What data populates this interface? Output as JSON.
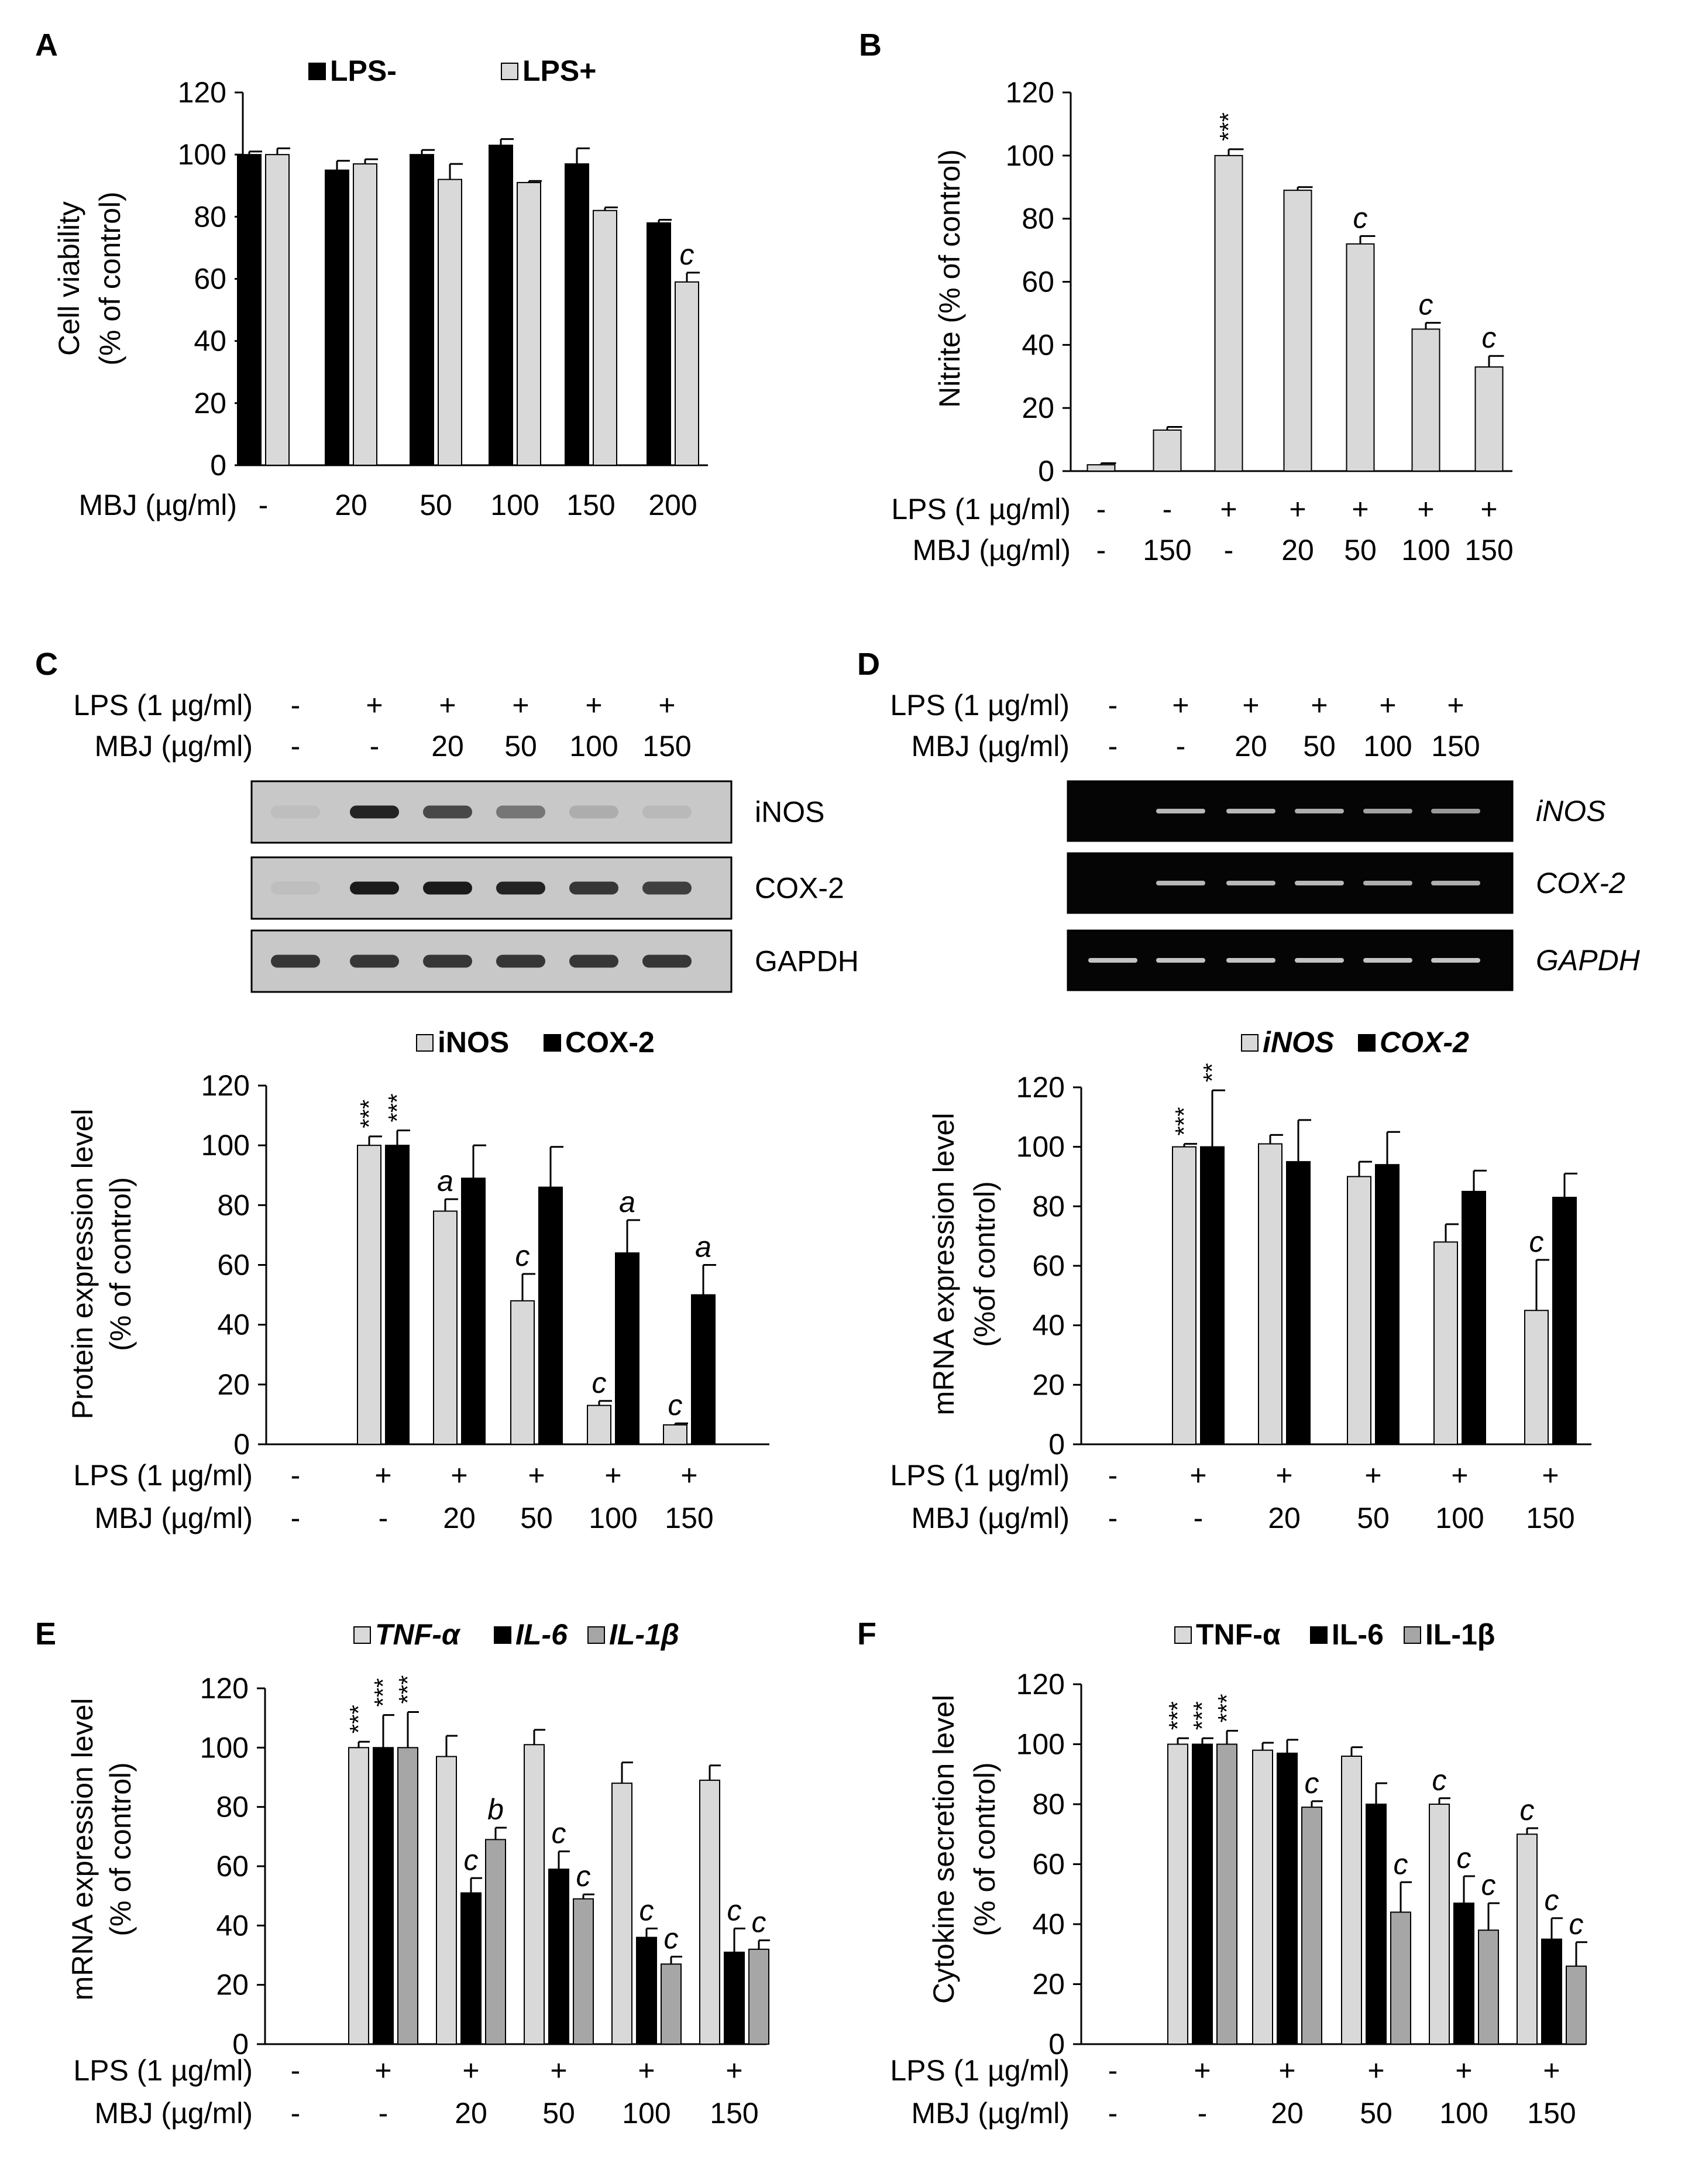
{
  "colors": {
    "light": "#d9d9d9",
    "black": "#000000",
    "mid": "#a6a6a6",
    "gel_bg": "#050505",
    "gel_band": "#d8d8d8",
    "blot_bg": "#c8c8c8"
  },
  "chart_data": [
    {
      "id": "A",
      "letter": "A",
      "type": "bar",
      "ylabel": [
        "Cell viability",
        "(% of control)"
      ],
      "ylim": [
        0,
        120
      ],
      "yticks": [
        0,
        20,
        40,
        60,
        80,
        100,
        120
      ],
      "legend": [
        {
          "label": "LPS-",
          "color": "#000000",
          "italic": false
        },
        {
          "label": "LPS+",
          "color": "#d9d9d9",
          "italic": false
        }
      ],
      "row_labels": [
        "MBJ (µg/ml)"
      ],
      "categories": [
        [
          "-"
        ],
        [
          "20"
        ],
        [
          "50"
        ],
        [
          "100"
        ],
        [
          "150"
        ],
        [
          "200"
        ]
      ],
      "series": [
        {
          "name": "LPS-",
          "color": "#000000",
          "values": [
            100,
            95,
            100,
            103,
            97,
            78
          ],
          "errors": [
            1,
            3,
            1.5,
            2,
            5,
            1
          ],
          "stars": [
            "",
            "",
            "",
            "",
            "",
            ""
          ]
        },
        {
          "name": "LPS+",
          "color": "#d9d9d9",
          "values": [
            100,
            97,
            92,
            91,
            82,
            59
          ],
          "errors": [
            2,
            1.5,
            5,
            0.5,
            1,
            3
          ],
          "stars": [
            "",
            "",
            "",
            "",
            "",
            "c"
          ]
        }
      ]
    },
    {
      "id": "B",
      "letter": "B",
      "type": "bar",
      "ylabel": [
        "Nitrite (% of control)"
      ],
      "ylim": [
        0,
        120
      ],
      "yticks": [
        0,
        20,
        40,
        60,
        80,
        100,
        120
      ],
      "legend": [],
      "row_labels": [
        "LPS (1 µg/ml)",
        "MBJ  (µg/ml)"
      ],
      "categories": [
        [
          "-",
          "-"
        ],
        [
          "-",
          "150"
        ],
        [
          "+",
          "-"
        ],
        [
          "+",
          "20"
        ],
        [
          "+",
          "50"
        ],
        [
          "+",
          "100"
        ],
        [
          "+",
          "150"
        ]
      ],
      "series": [
        {
          "name": "Nitrite",
          "color": "#d9d9d9",
          "values": [
            2,
            13,
            100,
            89,
            72,
            45,
            33
          ],
          "errors": [
            0.5,
            1,
            2,
            1,
            2.5,
            2,
            3.5
          ],
          "stars": [
            "",
            "",
            "***",
            "",
            "c",
            "c",
            "c"
          ]
        }
      ]
    },
    {
      "id": "C",
      "letter": "C",
      "type": "bar",
      "ylabel": [
        "Protein expression level",
        "(% of control)"
      ],
      "ylim": [
        0,
        120
      ],
      "yticks": [
        0,
        20,
        40,
        60,
        80,
        100,
        120
      ],
      "legend": [
        {
          "label": "iNOS",
          "color": "#d9d9d9",
          "italic": false
        },
        {
          "label": "COX-2",
          "color": "#000000",
          "italic": false
        }
      ],
      "row_labels": [
        "LPS (1 µg/ml)",
        "MBJ (µg/ml)"
      ],
      "categories": [
        [
          "-",
          "-"
        ],
        [
          "+",
          "-"
        ],
        [
          "+",
          "20"
        ],
        [
          "+",
          "50"
        ],
        [
          "+",
          "100"
        ],
        [
          "+",
          "150"
        ]
      ],
      "series": [
        {
          "name": "iNOS",
          "color": "#d9d9d9",
          "values": [
            0,
            100,
            78,
            48,
            13,
            6.5
          ],
          "errors": [
            0,
            3,
            4,
            9,
            1.5,
            0.5
          ],
          "stars": [
            "",
            "***",
            "a",
            "c",
            "c",
            "c"
          ]
        },
        {
          "name": "COX-2",
          "color": "#000000",
          "values": [
            0,
            100,
            89,
            86,
            64,
            50
          ],
          "errors": [
            0,
            5,
            11,
            13.5,
            11,
            10
          ],
          "stars": [
            "",
            "***",
            "",
            "",
            "a",
            "a"
          ]
        }
      ]
    },
    {
      "id": "D",
      "letter": "D",
      "type": "bar",
      "ylabel": [
        "mRNA expression level",
        "(%of control)"
      ],
      "ylim": [
        0,
        120
      ],
      "yticks": [
        0,
        20,
        40,
        60,
        80,
        100,
        120
      ],
      "legend": [
        {
          "label": "iNOS",
          "color": "#d9d9d9",
          "italic": true
        },
        {
          "label": "COX-2",
          "color": "#000000",
          "italic": true
        }
      ],
      "row_labels": [
        "LPS (1 µg/ml)",
        "MBJ (µg/ml)"
      ],
      "categories": [
        [
          "-",
          "-"
        ],
        [
          "+",
          "-"
        ],
        [
          "+",
          "20"
        ],
        [
          "+",
          "50"
        ],
        [
          "+",
          "100"
        ],
        [
          "+",
          "150"
        ]
      ],
      "series": [
        {
          "name": "iNOS",
          "color": "#d9d9d9",
          "values": [
            0,
            100,
            101,
            90,
            68,
            45
          ],
          "errors": [
            0,
            1,
            3,
            5,
            6,
            17
          ],
          "stars": [
            "",
            "***",
            "",
            "",
            "",
            "c"
          ]
        },
        {
          "name": "COX-2",
          "color": "#000000",
          "values": [
            0,
            100,
            95,
            94,
            85,
            83
          ],
          "errors": [
            0,
            19,
            14,
            11,
            7,
            8
          ],
          "stars": [
            "",
            "**",
            "",
            "",
            "",
            ""
          ]
        }
      ]
    },
    {
      "id": "E",
      "letter": "E",
      "type": "bar",
      "ylabel": [
        "mRNA expression level",
        "(% of control)"
      ],
      "ylim": [
        0,
        120
      ],
      "yticks": [
        0,
        20,
        40,
        60,
        80,
        100,
        120
      ],
      "legend": [
        {
          "label": "TNF-α",
          "color": "#d9d9d9",
          "italic": true
        },
        {
          "label": "IL-6",
          "color": "#000000",
          "italic": true
        },
        {
          "label": "IL-1β",
          "color": "#a6a6a6",
          "italic": true
        }
      ],
      "row_labels": [
        "LPS (1 µg/ml)",
        "MBJ (µg/ml)"
      ],
      "categories": [
        [
          "-",
          "-"
        ],
        [
          "+",
          "-"
        ],
        [
          "+",
          "20"
        ],
        [
          "+",
          "50"
        ],
        [
          "+",
          "100"
        ],
        [
          "+",
          "150"
        ]
      ],
      "series": [
        {
          "name": "TNF-α",
          "color": "#d9d9d9",
          "values": [
            0,
            100,
            97,
            101,
            88,
            89
          ],
          "errors": [
            0,
            2,
            7,
            5,
            7,
            5
          ],
          "stars": [
            "",
            "***",
            "",
            "",
            "",
            ""
          ]
        },
        {
          "name": "IL-6",
          "color": "#000000",
          "values": [
            0,
            100,
            51,
            59,
            36,
            31
          ],
          "errors": [
            0,
            11,
            5,
            6,
            3,
            8
          ],
          "stars": [
            "",
            "***",
            "c",
            "c",
            "c",
            "c"
          ]
        },
        {
          "name": "IL-1β",
          "color": "#a6a6a6",
          "values": [
            0,
            100,
            69,
            49,
            27,
            32
          ],
          "errors": [
            0,
            12,
            4,
            1.5,
            2.5,
            3
          ],
          "stars": [
            "",
            "***",
            "b",
            "c",
            "c",
            "c"
          ]
        }
      ]
    },
    {
      "id": "F",
      "letter": "F",
      "type": "bar",
      "ylabel": [
        "Cytokine secretion level",
        "(% of control)"
      ],
      "ylim": [
        0,
        120
      ],
      "yticks": [
        0,
        20,
        40,
        60,
        80,
        100,
        120
      ],
      "legend": [
        {
          "label": "TNF-α",
          "color": "#d9d9d9",
          "italic": false
        },
        {
          "label": "IL-6",
          "color": "#000000",
          "italic": false
        },
        {
          "label": "IL-1β",
          "color": "#a6a6a6",
          "italic": false
        }
      ],
      "row_labels": [
        "LPS (1 µg/ml)",
        "MBJ (µg/ml)"
      ],
      "categories": [
        [
          "-",
          "-"
        ],
        [
          "+",
          "-"
        ],
        [
          "+",
          "20"
        ],
        [
          "+",
          "50"
        ],
        [
          "+",
          "100"
        ],
        [
          "+",
          "150"
        ]
      ],
      "series": [
        {
          "name": "TNF-α",
          "color": "#d9d9d9",
          "values": [
            0,
            100,
            98,
            96,
            80,
            70
          ],
          "errors": [
            0,
            2,
            2.5,
            3,
            2,
            2
          ],
          "stars": [
            "",
            "***",
            "",
            "",
            "c",
            "c"
          ]
        },
        {
          "name": "IL-6",
          "color": "#000000",
          "values": [
            0,
            100,
            97,
            80,
            47,
            35
          ],
          "errors": [
            0,
            2,
            4.5,
            7,
            9,
            7
          ],
          "stars": [
            "",
            "***",
            "",
            "",
            "c",
            "c"
          ]
        },
        {
          "name": "IL-1β",
          "color": "#a6a6a6",
          "values": [
            0,
            100,
            79,
            44,
            38,
            26
          ],
          "errors": [
            0,
            4.5,
            2,
            10,
            9,
            8
          ],
          "stars": [
            "",
            "***",
            "c",
            "c",
            "c",
            "c"
          ]
        }
      ]
    }
  ],
  "blots": [
    {
      "id": "C",
      "letter": "C",
      "row_labels": [
        "LPS (1 µg/ml)",
        "MBJ (µg/ml)"
      ],
      "lanes": [
        [
          "-",
          "-"
        ],
        [
          "+",
          "-"
        ],
        [
          "+",
          "20"
        ],
        [
          "+",
          "50"
        ],
        [
          "+",
          "100"
        ],
        [
          "+",
          "150"
        ]
      ],
      "style": "western",
      "italic": false,
      "bands": [
        {
          "label": "iNOS",
          "intensity": [
            0.05,
            0.9,
            0.7,
            0.45,
            0.15,
            0.08
          ]
        },
        {
          "label": "COX-2",
          "intensity": [
            0.05,
            0.95,
            0.95,
            0.9,
            0.8,
            0.75
          ]
        },
        {
          "label": "GAPDH",
          "intensity": [
            0.8,
            0.8,
            0.8,
            0.8,
            0.8,
            0.8
          ]
        }
      ]
    },
    {
      "id": "D",
      "letter": "D",
      "row_labels": [
        "LPS (1 µg/ml)",
        "MBJ (µg/ml)"
      ],
      "lanes": [
        [
          "-",
          "-"
        ],
        [
          "+",
          "-"
        ],
        [
          "+",
          "20"
        ],
        [
          "+",
          "50"
        ],
        [
          "+",
          "100"
        ],
        [
          "+",
          "150"
        ]
      ],
      "style": "gel",
      "italic": true,
      "bands": [
        {
          "label": "iNOS",
          "intensity": [
            0.0,
            0.85,
            0.85,
            0.8,
            0.75,
            0.7
          ]
        },
        {
          "label": "COX-2",
          "intensity": [
            0.0,
            0.85,
            0.85,
            0.85,
            0.8,
            0.8
          ]
        },
        {
          "label": "GAPDH",
          "intensity": [
            0.9,
            0.9,
            0.9,
            0.9,
            0.9,
            0.9
          ]
        }
      ]
    }
  ]
}
